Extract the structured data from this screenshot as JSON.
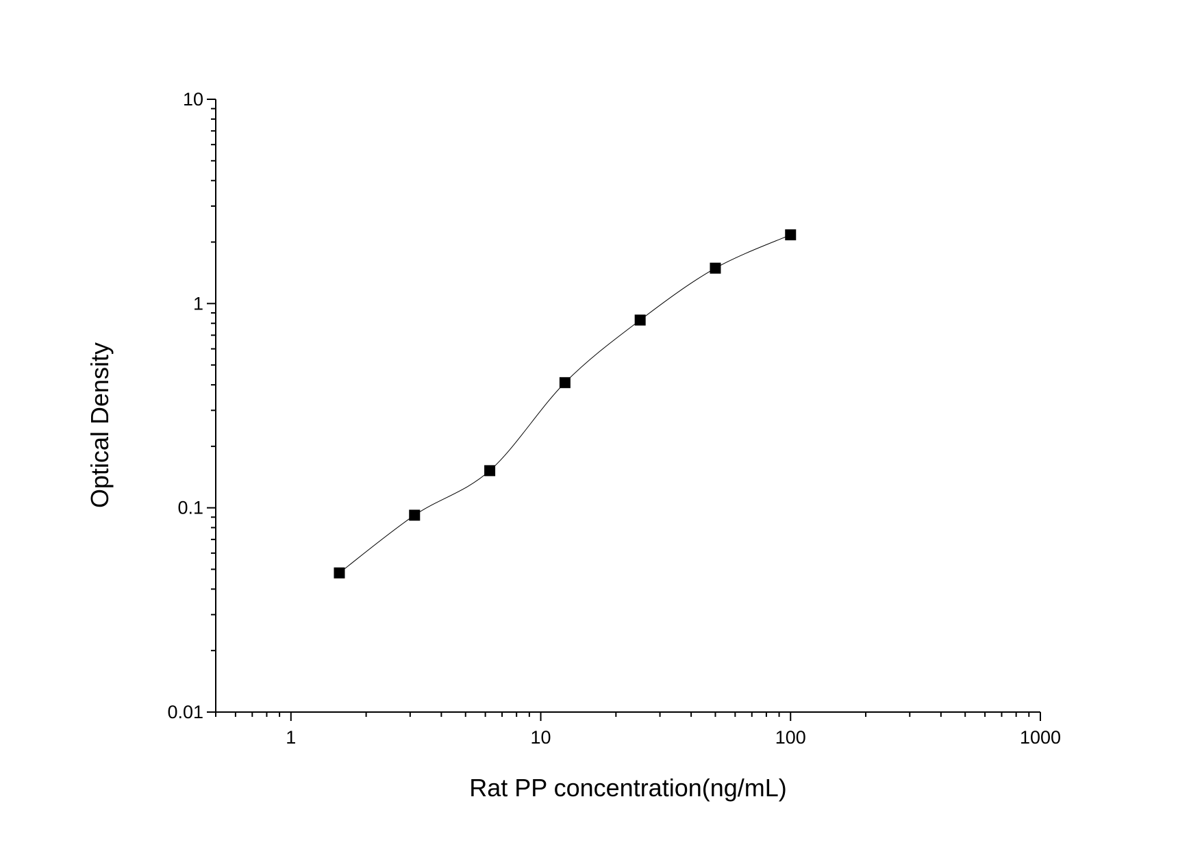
{
  "chart_data": {
    "type": "scatter",
    "x_label": "Rat PP concentration(ng/mL)",
    "y_label": "Optical Density",
    "x": [
      1.5625,
      3.125,
      6.25,
      12.5,
      25,
      50,
      100
    ],
    "values": [
      0.048,
      0.092,
      0.152,
      0.41,
      0.83,
      1.49,
      2.17
    ],
    "color": "#000000",
    "x_log": true,
    "y_log": true,
    "xlim": [
      0.5,
      1000
    ],
    "xticks": [
      1,
      10,
      100,
      1000
    ],
    "ylim": [
      0.01,
      10
    ],
    "yticks": [
      0.01,
      0.1,
      1,
      10
    ]
  }
}
